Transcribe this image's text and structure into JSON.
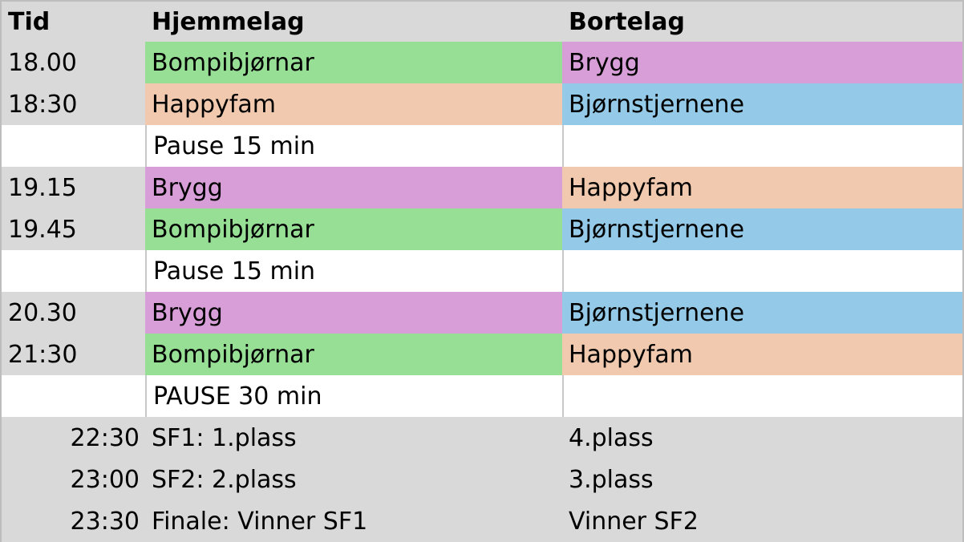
{
  "header": {
    "time": "Tid",
    "home": "Hjemmelag",
    "away": "Bortelag"
  },
  "rows": [
    {
      "time": "18.00",
      "home": "Bompibjørnar",
      "away": "Brygg"
    },
    {
      "time": "18:30",
      "home": "Happyfam",
      "away": "Bjørnstjernene"
    },
    {
      "time": "",
      "home": "Pause 15 min",
      "away": ""
    },
    {
      "time": "19.15",
      "home": "Brygg",
      "away": "Happyfam"
    },
    {
      "time": "19.45",
      "home": "Bompibjørnar",
      "away": "Bjørnstjernene"
    },
    {
      "time": "",
      "home": "Pause 15 min",
      "away": ""
    },
    {
      "time": "20.30",
      "home": "Brygg",
      "away": "Bjørnstjernene"
    },
    {
      "time": "21:30",
      "home": "Bompibjørnar",
      "away": "Happyfam"
    },
    {
      "time": "",
      "home": "PAUSE 30 min",
      "away": ""
    },
    {
      "time": "22:30",
      "home": "SF1: 1.plass",
      "away": "4.plass"
    },
    {
      "time": "23:00",
      "home": "SF2: 2.plass",
      "away": "3.plass"
    },
    {
      "time": "23:30",
      "home": "Finale: Vinner SF1",
      "away": "Vinner SF2"
    }
  ],
  "team_colors": {
    "Bompibjørnar": "#98df96",
    "Brygg": "#d89ed8",
    "Happyfam": "#f1c9ae",
    "Bjørnstjernene": "#94cae8"
  }
}
